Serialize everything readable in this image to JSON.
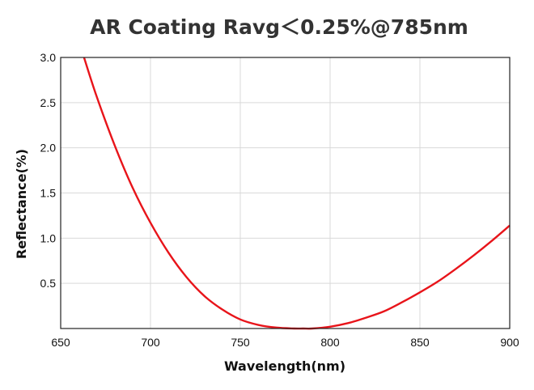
{
  "chart_data": {
    "type": "line",
    "title": "AR Coating Ravg＜0.25%@785nm",
    "xlabel": "Wavelength(nm)",
    "ylabel": "Reflectance(%)",
    "xlim": [
      650,
      900
    ],
    "ylim": [
      0,
      3.0
    ],
    "xticks": [
      "650",
      "700",
      "750",
      "800",
      "850",
      "900"
    ],
    "yticks": [
      "0.5",
      "1.0",
      "1.5",
      "2.0",
      "2.5",
      "3.0"
    ],
    "grid": true,
    "legend": "none",
    "series": [
      {
        "color": "#e8141a",
        "x": [
          663,
          670,
          680,
          690,
          700,
          710,
          720,
          730,
          740,
          750,
          760,
          770,
          780,
          785,
          790,
          800,
          810,
          820,
          830,
          840,
          850,
          860,
          870,
          880,
          890,
          900
        ],
        "y": [
          3.0,
          2.57,
          2.03,
          1.56,
          1.17,
          0.84,
          0.57,
          0.36,
          0.21,
          0.1,
          0.04,
          0.01,
          0.0,
          0.0,
          0.0,
          0.02,
          0.06,
          0.12,
          0.19,
          0.29,
          0.4,
          0.52,
          0.66,
          0.81,
          0.97,
          1.14
        ]
      }
    ]
  }
}
